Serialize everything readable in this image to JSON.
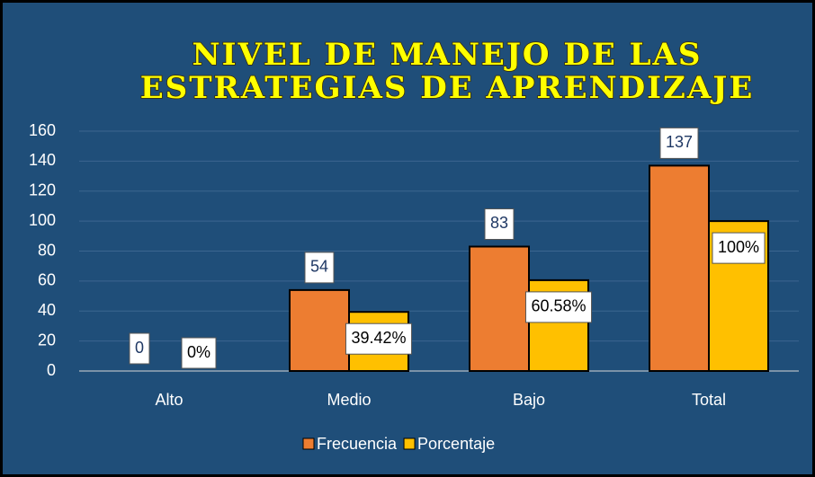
{
  "chart_data": {
    "type": "bar",
    "title": [
      "NIVEL DE MANEJO DE LAS",
      "ESTRATEGIAS DE APRENDIZAJE"
    ],
    "categories": [
      "Alto",
      "Medio",
      "Bajo",
      "Total"
    ],
    "series": [
      {
        "name": "Frecuencia",
        "color": "#ed7d31",
        "values": [
          0,
          54,
          83,
          137
        ]
      },
      {
        "name": "Porcentaje",
        "color": "#ffc000",
        "values": [
          0,
          39.42,
          60.58,
          100
        ],
        "value_labels": [
          "0%",
          "39.42%",
          "60.58%",
          "100%"
        ]
      }
    ],
    "ylim": [
      0,
      160
    ],
    "yticks": [
      0,
      20,
      40,
      60,
      80,
      100,
      120,
      140,
      160
    ],
    "grid": true,
    "legend": "bottom"
  }
}
